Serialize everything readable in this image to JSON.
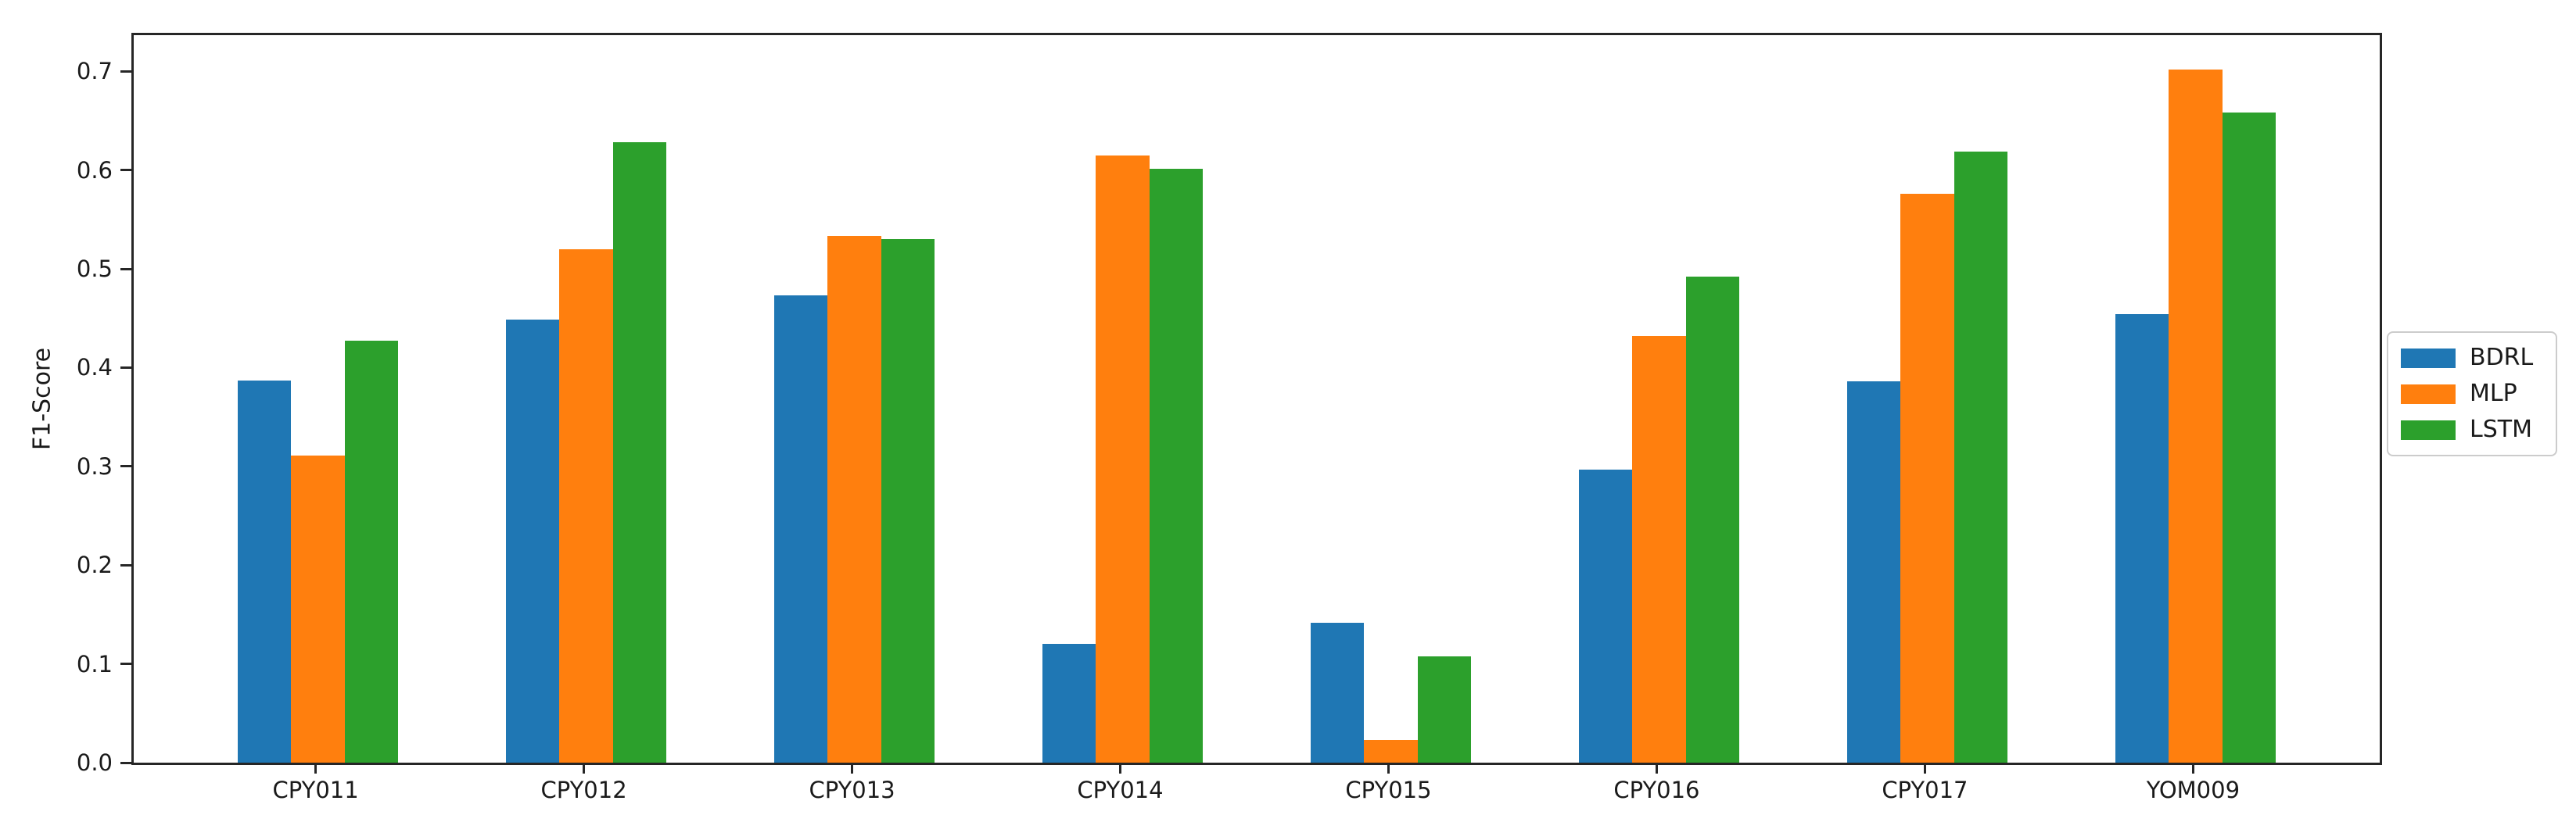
{
  "figure": {
    "background": "#ffffff",
    "spine_color": "#262626",
    "text_color": "#1a1a1a"
  },
  "chart_data": {
    "type": "bar",
    "title": "",
    "xlabel": "",
    "ylabel": "F1-Score",
    "categories": [
      "CPY011",
      "CPY012",
      "CPY013",
      "CPY014",
      "CPY015",
      "CPY016",
      "CPY017",
      "YOM009"
    ],
    "series": [
      {
        "name": "BDRL",
        "color": "#1f77b4",
        "values": [
          0.387,
          0.449,
          0.473,
          0.12,
          0.142,
          0.297,
          0.386,
          0.454
        ]
      },
      {
        "name": "MLP",
        "color": "#ff7f0e",
        "values": [
          0.311,
          0.52,
          0.533,
          0.615,
          0.023,
          0.432,
          0.576,
          0.702
        ]
      },
      {
        "name": "LSTM",
        "color": "#2ca02c",
        "values": [
          0.427,
          0.628,
          0.53,
          0.601,
          0.108,
          0.492,
          0.619,
          0.658
        ]
      }
    ],
    "ytick_labels": [
      "0.0",
      "0.1",
      "0.2",
      "0.3",
      "0.4",
      "0.5",
      "0.6",
      "0.7"
    ],
    "ytick_values": [
      0.0,
      0.1,
      0.2,
      0.3,
      0.4,
      0.5,
      0.6,
      0.7
    ],
    "ylim": [
      0,
      0.7366
    ],
    "xlim_units": [
      -0.687,
      7.687
    ],
    "bar_width_units": 0.2,
    "grid": false,
    "legend": {
      "position": "center-right-outside",
      "border_color": "#cccccc"
    }
  }
}
